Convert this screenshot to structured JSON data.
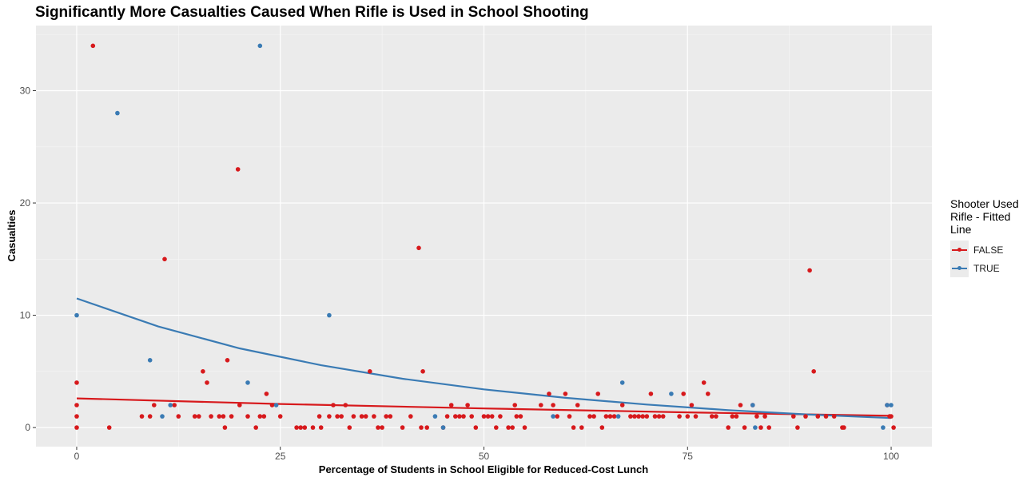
{
  "chart_data": {
    "type": "scatter",
    "title": "Significantly More Casualties Caused When Rifle is Used in School Shooting",
    "xlabel": "Percentage of Students in School Eligible for Reduced-Cost Lunch",
    "ylabel": "Casualties",
    "xlim": [
      -5,
      105
    ],
    "ylim": [
      -1.7,
      35.8
    ],
    "x_ticks": [
      0,
      25,
      50,
      75,
      100
    ],
    "y_ticks": [
      0,
      10,
      20,
      30
    ],
    "grid": true,
    "legend": {
      "title": "Shooter Used Rifle - Fitted Line",
      "placement": "right",
      "entries": [
        "FALSE",
        "TRUE"
      ]
    },
    "colors": {
      "FALSE": "#d7191c",
      "TRUE": "#3a7bb4",
      "panel": "#ebebeb",
      "grid": "#ffffff"
    },
    "series": [
      {
        "name": "FALSE",
        "points": [
          [
            0,
            4
          ],
          [
            0,
            2
          ],
          [
            0,
            1
          ],
          [
            0,
            0
          ],
          [
            2,
            34
          ],
          [
            4,
            0
          ],
          [
            8,
            1
          ],
          [
            9,
            1
          ],
          [
            9.5,
            2
          ],
          [
            10.8,
            15
          ],
          [
            12,
            2
          ],
          [
            12.5,
            1
          ],
          [
            14.5,
            1
          ],
          [
            15,
            1
          ],
          [
            15.5,
            5
          ],
          [
            16,
            4
          ],
          [
            16.5,
            1
          ],
          [
            17.5,
            1
          ],
          [
            18,
            1
          ],
          [
            18.2,
            0
          ],
          [
            18.5,
            6
          ],
          [
            19,
            1
          ],
          [
            19.8,
            23
          ],
          [
            20,
            2
          ],
          [
            21,
            1
          ],
          [
            22,
            0
          ],
          [
            22.5,
            1
          ],
          [
            23,
            1
          ],
          [
            23.3,
            3
          ],
          [
            24,
            2
          ],
          [
            25,
            1
          ],
          [
            27,
            0
          ],
          [
            27.5,
            0
          ],
          [
            28,
            0
          ],
          [
            29,
            0
          ],
          [
            29.8,
            1
          ],
          [
            30,
            0
          ],
          [
            31,
            1
          ],
          [
            31.5,
            2
          ],
          [
            32,
            1
          ],
          [
            32.5,
            1
          ],
          [
            33,
            2
          ],
          [
            33.5,
            0
          ],
          [
            34,
            1
          ],
          [
            35,
            1
          ],
          [
            35.5,
            1
          ],
          [
            36,
            5
          ],
          [
            36.5,
            1
          ],
          [
            37,
            0
          ],
          [
            37.5,
            0
          ],
          [
            38,
            1
          ],
          [
            38.5,
            1
          ],
          [
            40,
            0
          ],
          [
            41,
            1
          ],
          [
            42,
            16
          ],
          [
            42.3,
            0
          ],
          [
            42.5,
            5
          ],
          [
            43,
            0
          ],
          [
            45,
            0
          ],
          [
            45.5,
            1
          ],
          [
            46,
            2
          ],
          [
            46.5,
            1
          ],
          [
            47,
            1
          ],
          [
            47.5,
            1
          ],
          [
            48,
            2
          ],
          [
            48.5,
            1
          ],
          [
            49,
            0
          ],
          [
            50,
            1
          ],
          [
            50.5,
            1
          ],
          [
            51,
            1
          ],
          [
            51.5,
            0
          ],
          [
            52,
            1
          ],
          [
            53,
            0
          ],
          [
            53.5,
            0
          ],
          [
            53.8,
            2
          ],
          [
            54,
            1
          ],
          [
            54.5,
            1
          ],
          [
            55,
            0
          ],
          [
            57,
            2
          ],
          [
            58,
            3
          ],
          [
            58.5,
            2
          ],
          [
            59,
            1
          ],
          [
            60,
            3
          ],
          [
            60.5,
            1
          ],
          [
            61,
            0
          ],
          [
            61.5,
            2
          ],
          [
            62,
            0
          ],
          [
            63,
            1
          ],
          [
            63.5,
            1
          ],
          [
            64,
            3
          ],
          [
            64.5,
            0
          ],
          [
            65,
            1
          ],
          [
            65.5,
            1
          ],
          [
            66,
            1
          ],
          [
            67,
            2
          ],
          [
            68,
            1
          ],
          [
            68.5,
            1
          ],
          [
            69,
            1
          ],
          [
            69.5,
            1
          ],
          [
            70,
            1
          ],
          [
            70.5,
            3
          ],
          [
            71,
            1
          ],
          [
            71.5,
            1
          ],
          [
            72,
            1
          ],
          [
            74,
            1
          ],
          [
            74.5,
            3
          ],
          [
            75,
            1
          ],
          [
            75.5,
            2
          ],
          [
            76,
            1
          ],
          [
            77,
            4
          ],
          [
            77.5,
            3
          ],
          [
            78,
            1
          ],
          [
            78.5,
            1
          ],
          [
            80,
            0
          ],
          [
            80.5,
            1
          ],
          [
            81,
            1
          ],
          [
            81.5,
            2
          ],
          [
            82,
            0
          ],
          [
            83,
            2
          ],
          [
            83.5,
            1
          ],
          [
            84,
            0
          ],
          [
            84.5,
            1
          ],
          [
            85,
            0
          ],
          [
            88,
            1
          ],
          [
            88.5,
            0
          ],
          [
            89.5,
            1
          ],
          [
            90,
            14
          ],
          [
            90.5,
            5
          ],
          [
            91,
            1
          ],
          [
            92,
            1
          ],
          [
            93,
            1
          ],
          [
            94,
            0
          ],
          [
            94.2,
            0
          ],
          [
            99.5,
            2
          ],
          [
            99.8,
            1
          ],
          [
            100,
            1
          ],
          [
            100.3,
            0
          ]
        ],
        "fit": [
          [
            0,
            2.6
          ],
          [
            25,
            2.1
          ],
          [
            50,
            1.7
          ],
          [
            75,
            1.35
          ],
          [
            100,
            1.05
          ]
        ]
      },
      {
        "name": "TRUE",
        "points": [
          [
            0,
            10
          ],
          [
            5,
            28
          ],
          [
            9,
            6
          ],
          [
            10.5,
            1
          ],
          [
            11.5,
            2
          ],
          [
            21,
            4
          ],
          [
            22.5,
            34
          ],
          [
            24.5,
            2
          ],
          [
            31,
            10
          ],
          [
            44,
            1
          ],
          [
            45,
            0
          ],
          [
            58.5,
            1
          ],
          [
            66.5,
            1
          ],
          [
            67,
            4
          ],
          [
            73,
            3
          ],
          [
            83,
            2
          ],
          [
            83.3,
            0
          ],
          [
            99,
            0
          ],
          [
            99.5,
            2
          ],
          [
            100,
            2
          ]
        ],
        "fit": [
          [
            0,
            11.5
          ],
          [
            10,
            9.0
          ],
          [
            20,
            7.05
          ],
          [
            30,
            5.55
          ],
          [
            40,
            4.35
          ],
          [
            50,
            3.4
          ],
          [
            60,
            2.65
          ],
          [
            70,
            2.05
          ],
          [
            80,
            1.55
          ],
          [
            90,
            1.15
          ],
          [
            100,
            0.85
          ]
        ]
      }
    ]
  }
}
